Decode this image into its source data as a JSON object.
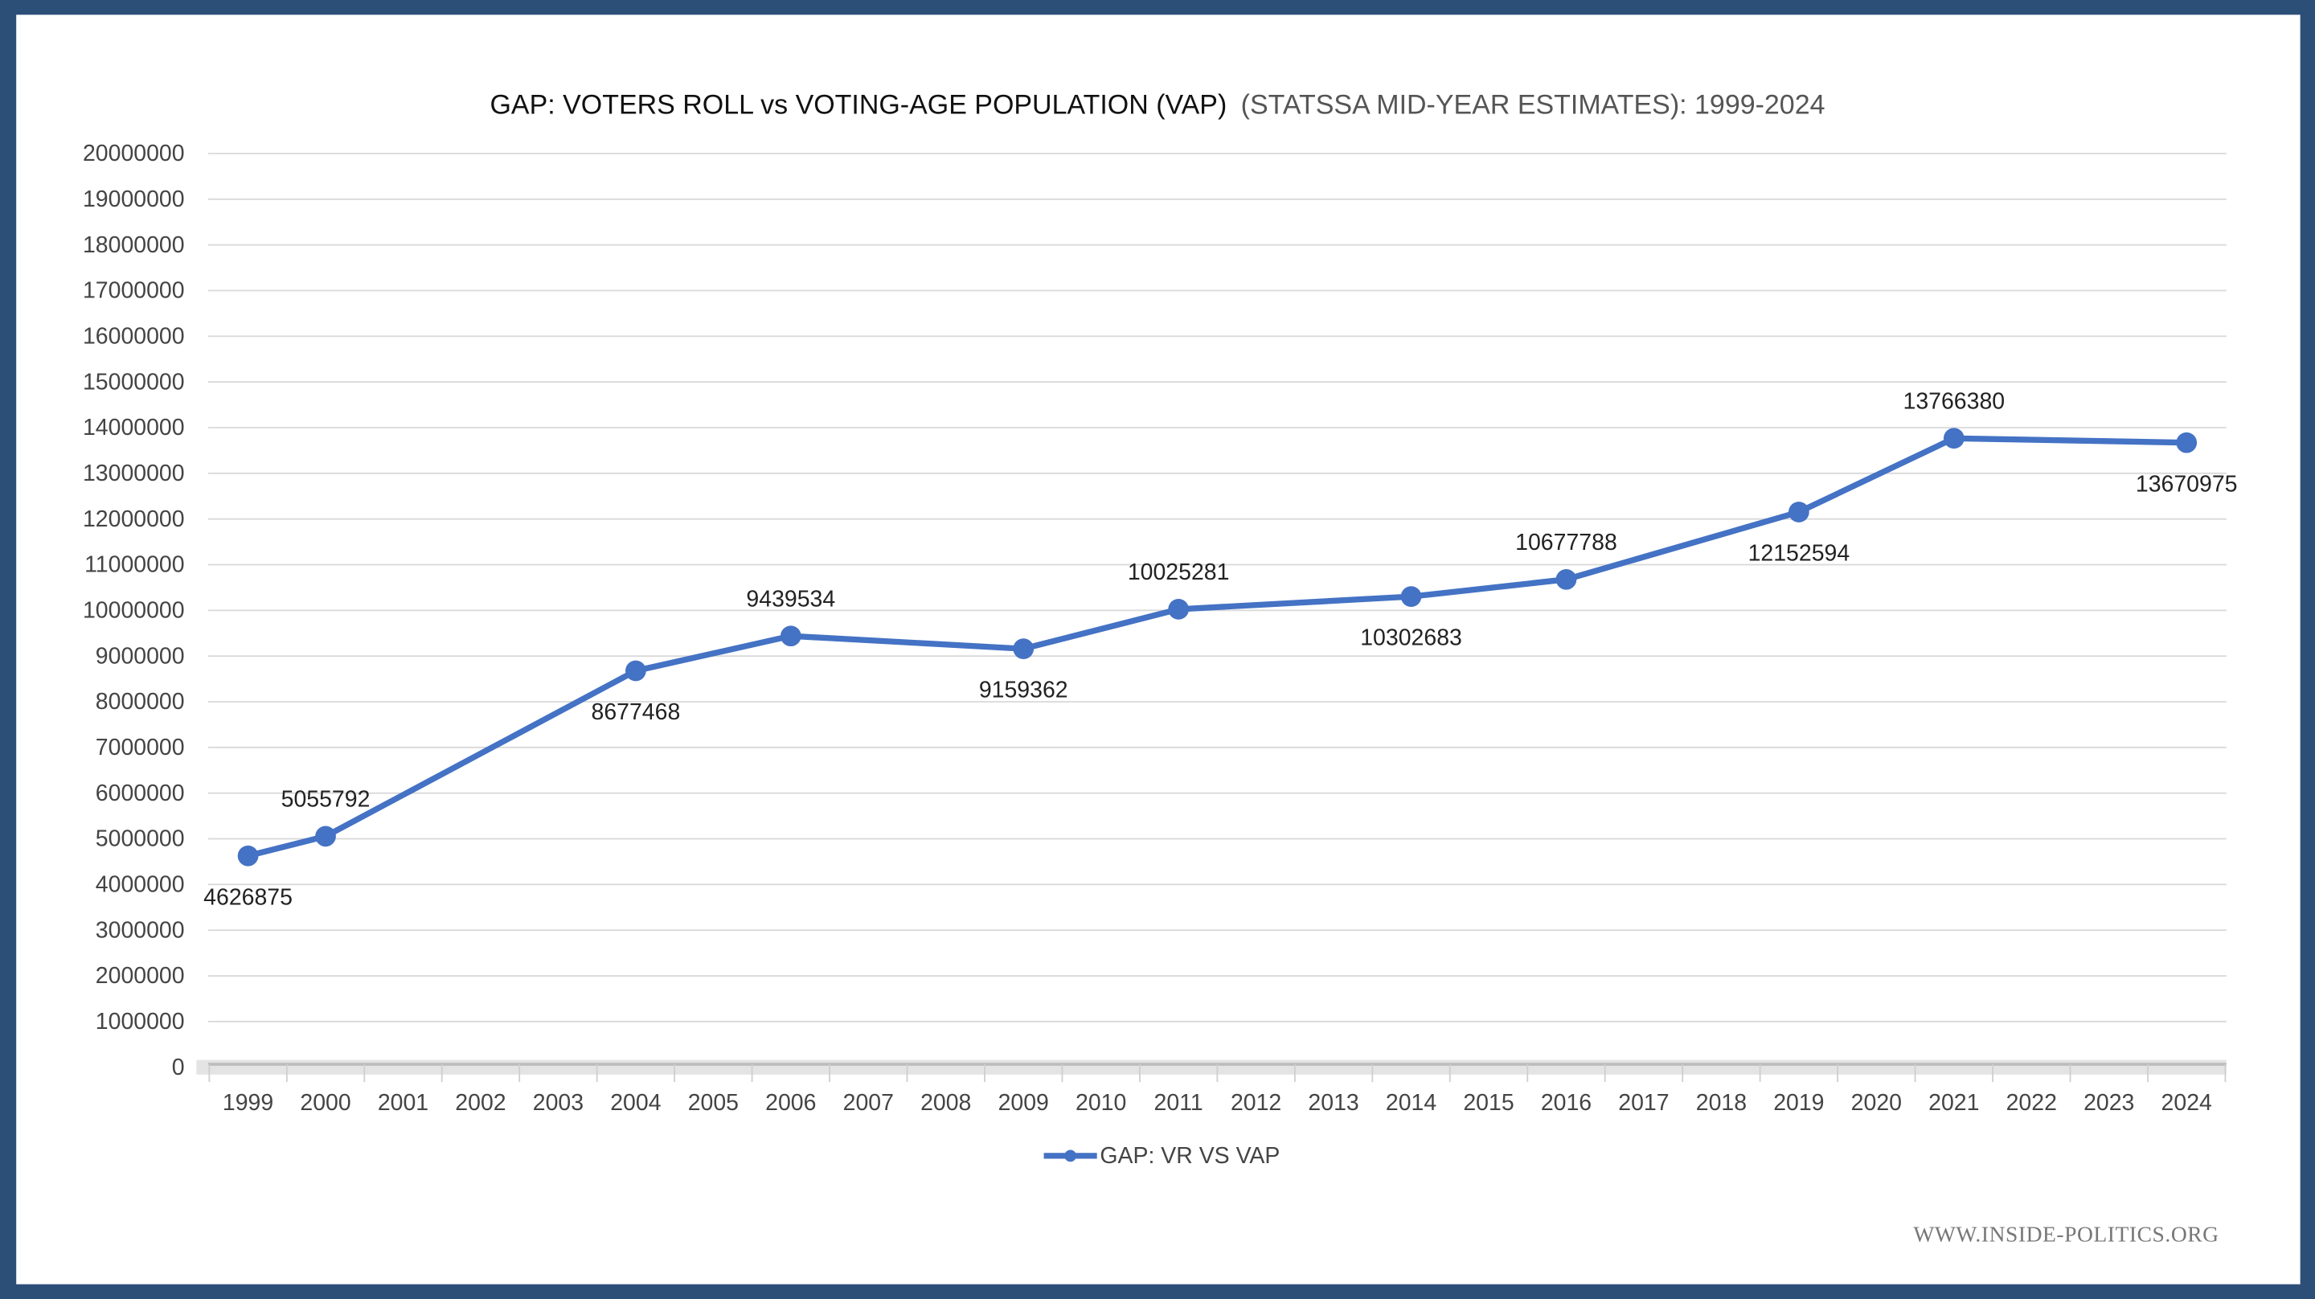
{
  "chart_data": {
    "type": "line",
    "title": "GAP: VOTERS ROLL vs VOTING-AGE POPULATION (VAP)",
    "subtitle": "(STATSSA MID-YEAR ESTIMATES): 1999-2024",
    "xlabel": "",
    "ylabel": "",
    "ylim": [
      0,
      20000000
    ],
    "ytick_step": 1000000,
    "categories": [
      "1999",
      "2000",
      "2001",
      "2002",
      "2003",
      "2004",
      "2005",
      "2006",
      "2007",
      "2008",
      "2009",
      "2010",
      "2011",
      "2012",
      "2013",
      "2014",
      "2015",
      "2016",
      "2017",
      "2018",
      "2019",
      "2020",
      "2021",
      "2022",
      "2023",
      "2024"
    ],
    "grid": true,
    "legend_position": "bottom",
    "series": [
      {
        "name": "GAP: VR VS VAP",
        "color": "#4472c4",
        "points": [
          {
            "x": "1999",
            "y": 4626875
          },
          {
            "x": "2000",
            "y": 5055792
          },
          {
            "x": "2004",
            "y": 8677468
          },
          {
            "x": "2006",
            "y": 9439534
          },
          {
            "x": "2009",
            "y": 9159362
          },
          {
            "x": "2011",
            "y": 10025281
          },
          {
            "x": "2014",
            "y": 10302683
          },
          {
            "x": "2016",
            "y": 10677788
          },
          {
            "x": "2019",
            "y": 12152594
          },
          {
            "x": "2021",
            "y": 13766380
          },
          {
            "x": "2024",
            "y": 13670975
          }
        ]
      }
    ]
  },
  "watermark": "WWW.INSIDE-POLITICS.ORG",
  "colors": {
    "frame": "#2c4f78",
    "series": "#4472c4",
    "grid": "#d9d9d9"
  }
}
